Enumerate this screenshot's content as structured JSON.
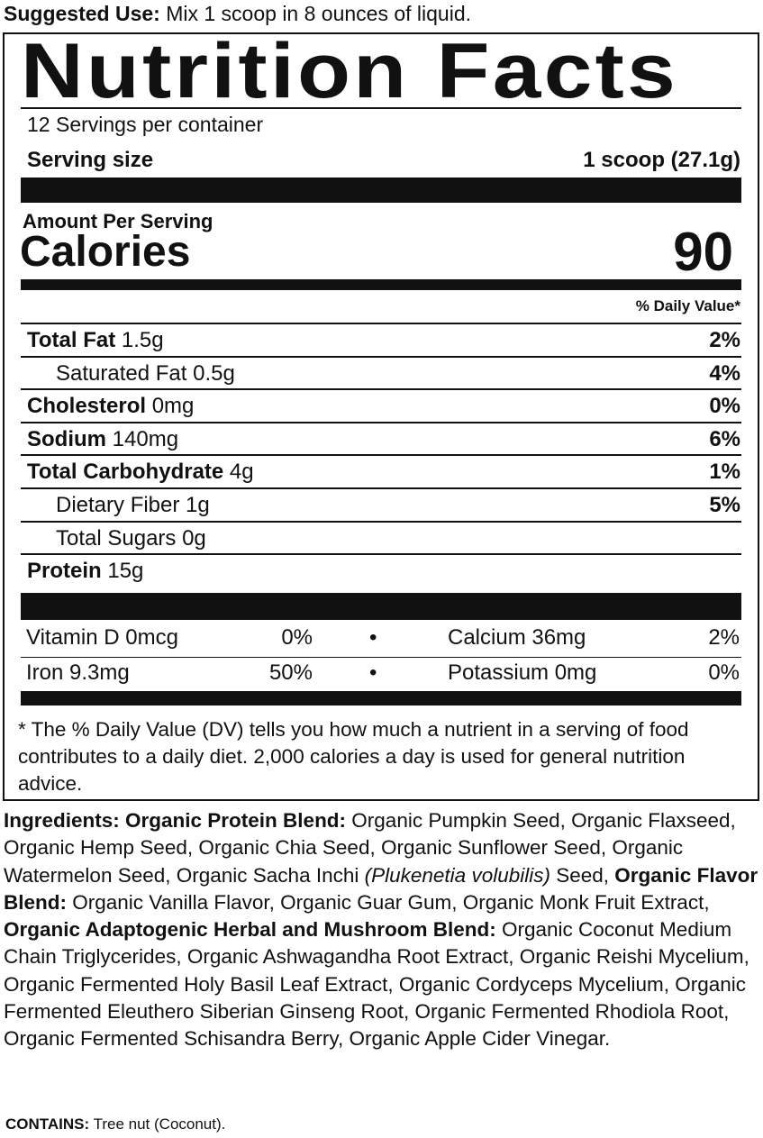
{
  "suggested_use": {
    "label": "Suggested Use:",
    "text": " Mix 1 scoop in 8 ounces of liquid."
  },
  "title": "Nutrition Facts",
  "servings": "12 Servings per container",
  "serving_size": {
    "label": "Serving size",
    "value": "1 scoop (27.1g)"
  },
  "amount_per_serving": "Amount Per Serving",
  "calories": {
    "label": "Calories",
    "value": "90"
  },
  "dv_header": "% Daily Value*",
  "nutrients": [
    {
      "name": "Total Fat",
      "amount": " 1.5g",
      "dv": "2%",
      "bold": true,
      "indent": false
    },
    {
      "name": "Saturated Fat",
      "amount": " 0.5g",
      "dv": "4%",
      "bold": false,
      "indent": true
    },
    {
      "name": "Cholesterol",
      "amount": " 0mg",
      "dv": "0%",
      "bold": true,
      "indent": false
    },
    {
      "name": "Sodium",
      "amount": " 140mg",
      "dv": "6%",
      "bold": true,
      "indent": false
    },
    {
      "name": "Total Carbohydrate",
      "amount": " 4g",
      "dv": "1%",
      "bold": true,
      "indent": false
    },
    {
      "name": "Dietary Fiber",
      "amount": " 1g",
      "dv": "5%",
      "bold": false,
      "indent": true
    },
    {
      "name": "Total Sugars",
      "amount": " 0g",
      "dv": "",
      "bold": false,
      "indent": true
    },
    {
      "name": "Protein",
      "amount": " 15g",
      "dv": "",
      "bold": true,
      "indent": false
    }
  ],
  "vitamins": [
    {
      "left": "Vitamin D 0mcg",
      "left_dv": "0%",
      "right": "Calcium 36mg",
      "right_dv": "2%"
    },
    {
      "left": "Iron 9.3mg",
      "left_dv": "50%",
      "right": "Potassium 0mg",
      "right_dv": "0%"
    }
  ],
  "bullet": "•",
  "footnote": "* The % Daily Value (DV) tells you how much a nutrient in a serving of food contributes to a daily diet. 2,000 calories a day is used for general nutrition advice.",
  "ingredients": [
    {
      "t": "Ingredients: ",
      "s": "b"
    },
    {
      "t": "Organic Protein Blend:",
      "s": "b"
    },
    {
      "t": " Organic Pumpkin Seed, Organic Flaxseed, Organic Hemp Seed, Organic Chia Seed, Organic Sunflower Seed, Organic Watermelon Seed, Organic Sacha Inchi ",
      "s": ""
    },
    {
      "t": "(Plukenetia volubilis)",
      "s": "i"
    },
    {
      "t": " Seed, ",
      "s": ""
    },
    {
      "t": "Organic Flavor Blend:",
      "s": "b"
    },
    {
      "t": " Organic Vanilla Flavor, Organic Guar Gum, Organic Monk Fruit Extract, ",
      "s": ""
    },
    {
      "t": "Organic Adaptogenic Herbal and Mushroom Blend:",
      "s": "b"
    },
    {
      "t": " Organic Coconut Medium Chain Triglycerides, Organic Ashwagandha Root Extract, Organic Reishi Mycelium, Organic Fermented Holy Basil Leaf Extract, Organic Cordyceps Mycelium, Organic Fermented Eleuthero Siberian Ginseng Root, Organic Fermented Rhodiola Root, Organic Fermented Schisandra Berry, Organic Apple Cider Vinegar.",
      "s": ""
    }
  ],
  "contains": {
    "label": "CONTAINS:",
    "text": " Tree nut (Coconut)."
  }
}
